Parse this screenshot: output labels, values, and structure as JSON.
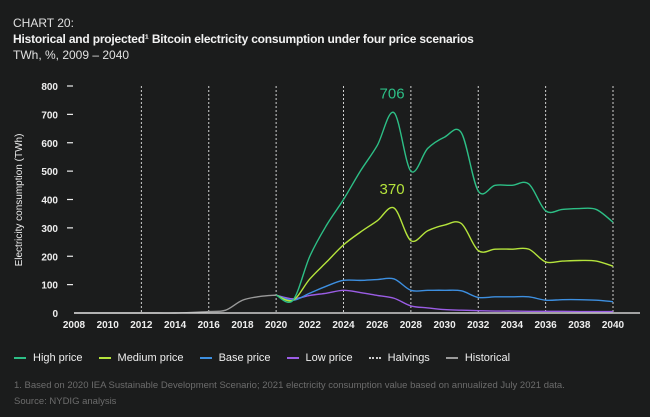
{
  "header": {
    "label": "CHART 20:",
    "title": "Historical and projected¹ Bitcoin electricity consumption under four price scenarios",
    "subtitle": "TWh, %, 2009 – 2040"
  },
  "chart_data": {
    "type": "line",
    "ylabel": "Electricity consumption (TWh)",
    "xlim": [
      2008,
      2040
    ],
    "ylim": [
      0,
      800
    ],
    "x_ticks": [
      2008,
      2010,
      2012,
      2014,
      2016,
      2018,
      2020,
      2022,
      2024,
      2026,
      2028,
      2030,
      2032,
      2034,
      2036,
      2038,
      2040
    ],
    "y_ticks": [
      0,
      100,
      200,
      300,
      400,
      500,
      600,
      700,
      800
    ],
    "halvings": [
      2012,
      2016,
      2020,
      2024,
      2028,
      2032,
      2036,
      2040
    ],
    "legend_placement": "bottom",
    "annotations": [
      {
        "text": "706",
        "x": 2027,
        "y": 706,
        "series": "High price"
      },
      {
        "text": "370",
        "x": 2027,
        "y": 370,
        "series": "Medium price"
      }
    ],
    "series": [
      {
        "name": "Historical",
        "color": "#9a9a9a",
        "x": [
          2008,
          2009,
          2010,
          2011,
          2012,
          2013,
          2014,
          2015,
          2016,
          2017,
          2018,
          2019,
          2020
        ],
        "values": [
          0,
          0,
          0,
          0,
          0,
          0,
          0,
          2,
          5,
          10,
          45,
          58,
          63
        ]
      },
      {
        "name": "High price",
        "color": "#2dbf86",
        "x": [
          2020,
          2021,
          2022,
          2023,
          2024,
          2025,
          2026,
          2027,
          2028,
          2029,
          2030,
          2031,
          2032,
          2033,
          2034,
          2035,
          2036,
          2037,
          2038,
          2039,
          2040
        ],
        "values": [
          63,
          45,
          200,
          310,
          400,
          500,
          590,
          706,
          500,
          580,
          620,
          635,
          430,
          450,
          450,
          455,
          360,
          365,
          368,
          365,
          320
        ]
      },
      {
        "name": "Medium price",
        "color": "#b5e43c",
        "x": [
          2020,
          2021,
          2022,
          2023,
          2024,
          2025,
          2026,
          2027,
          2028,
          2029,
          2030,
          2031,
          2032,
          2033,
          2034,
          2035,
          2036,
          2037,
          2038,
          2039,
          2040
        ],
        "values": [
          63,
          45,
          120,
          180,
          240,
          285,
          325,
          370,
          255,
          290,
          310,
          315,
          220,
          225,
          225,
          225,
          180,
          183,
          185,
          183,
          165
        ]
      },
      {
        "name": "Base price",
        "color": "#3d8fe0",
        "x": [
          2020,
          2021,
          2022,
          2023,
          2024,
          2025,
          2026,
          2027,
          2028,
          2029,
          2030,
          2031,
          2032,
          2033,
          2034,
          2035,
          2036,
          2037,
          2038,
          2039,
          2040
        ],
        "values": [
          63,
          45,
          70,
          95,
          115,
          115,
          118,
          120,
          80,
          80,
          80,
          78,
          55,
          57,
          57,
          57,
          45,
          47,
          47,
          45,
          40
        ]
      },
      {
        "name": "Low price",
        "color": "#9b5de5",
        "x": [
          2020,
          2021,
          2022,
          2023,
          2024,
          2025,
          2026,
          2027,
          2028,
          2029,
          2030,
          2031,
          2032,
          2033,
          2034,
          2035,
          2036,
          2037,
          2038,
          2039,
          2040
        ],
        "values": [
          63,
          50,
          62,
          70,
          80,
          72,
          62,
          52,
          25,
          18,
          12,
          10,
          8,
          7,
          7,
          6,
          6,
          6,
          5,
          5,
          5
        ]
      }
    ]
  },
  "legend": [
    {
      "label": "High price",
      "color": "#2dbf86",
      "style": "solid"
    },
    {
      "label": "Medium price",
      "color": "#b5e43c",
      "style": "solid"
    },
    {
      "label": "Base price",
      "color": "#3d8fe0",
      "style": "solid"
    },
    {
      "label": "Low price",
      "color": "#9b5de5",
      "style": "solid"
    },
    {
      "label": "Halvings",
      "color": "#cccccc",
      "style": "dashed"
    },
    {
      "label": "Historical",
      "color": "#9a9a9a",
      "style": "solid"
    }
  ],
  "footnote": "1.    Based on 2020 IEA Sustainable Development Scenario; 2021 electricity consumption value based on annualized July 2021 data.",
  "source": "Source: NYDIG analysis"
}
